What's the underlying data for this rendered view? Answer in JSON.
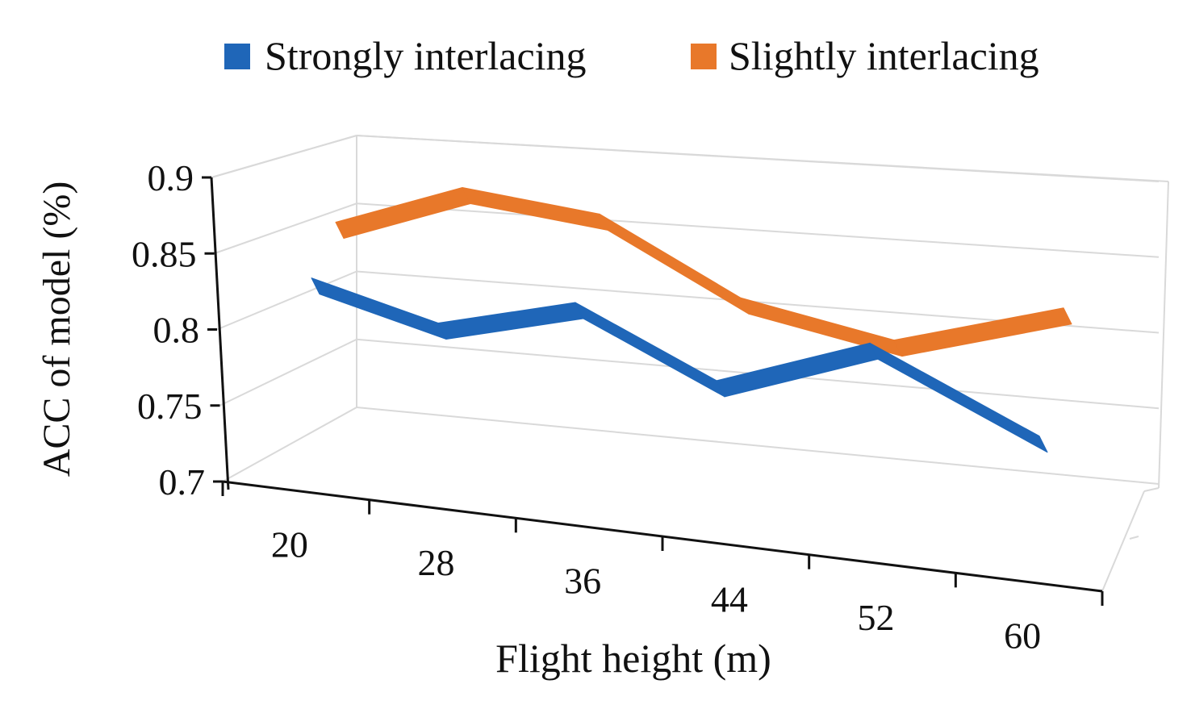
{
  "chart_data": {
    "type": "line",
    "subtype": "3d-line",
    "title": "",
    "xlabel": "Flight height (m)",
    "ylabel": "ACC of model (%)",
    "categories": [
      "20",
      "28",
      "36",
      "44",
      "52",
      "60"
    ],
    "y_ticks": [
      "0.9",
      "0.85",
      "0.8",
      "0.75",
      "0.7"
    ],
    "ylim": [
      0.7,
      0.9
    ],
    "grid": true,
    "legend_position": "top",
    "series": [
      {
        "name": "Strongly interlacing",
        "color": "#1f66b8",
        "values": [
          0.81,
          0.785,
          0.808,
          0.762,
          0.797,
          0.745
        ]
      },
      {
        "name": "Slightly interlacing",
        "color": "#e8782a",
        "values": [
          0.838,
          0.87,
          0.858,
          0.807,
          0.787,
          0.818
        ]
      }
    ]
  }
}
